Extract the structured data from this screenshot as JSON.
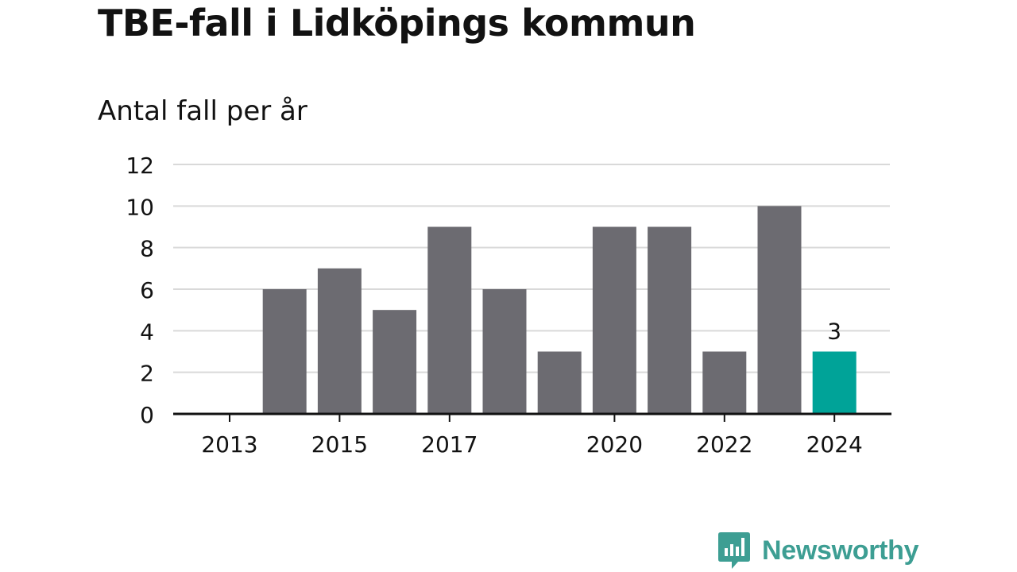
{
  "title": "TBE-fall i Lidköpings kommun",
  "subtitle": "Antal fall per år",
  "brand": {
    "name": "Newsworthy",
    "logo_icon": "bar-chart-speech-bubble-icon",
    "color": "#3d9e93"
  },
  "colors": {
    "bar": "#6c6b71",
    "highlight": "#00a398",
    "grid": "#d9d9d9",
    "axis": "#121212"
  },
  "chart_data": {
    "type": "bar",
    "categories": [
      "2013",
      "2014",
      "2015",
      "2016",
      "2017",
      "2018",
      "2019",
      "2020",
      "2021",
      "2022",
      "2023",
      "2024"
    ],
    "values": [
      0,
      6,
      7,
      5,
      9,
      6,
      3,
      9,
      9,
      3,
      10,
      3
    ],
    "highlight_index": 11,
    "data_labels": [
      {
        "index": 11,
        "text": "3"
      }
    ],
    "x_tick_labels": [
      "2013",
      "2015",
      "2017",
      "2020",
      "2022",
      "2024"
    ],
    "y_ticks": [
      0,
      2,
      4,
      6,
      8,
      10,
      12
    ],
    "ylim": [
      0,
      12
    ],
    "xlabel": "",
    "ylabel": "",
    "grid": true,
    "legend": false
  }
}
